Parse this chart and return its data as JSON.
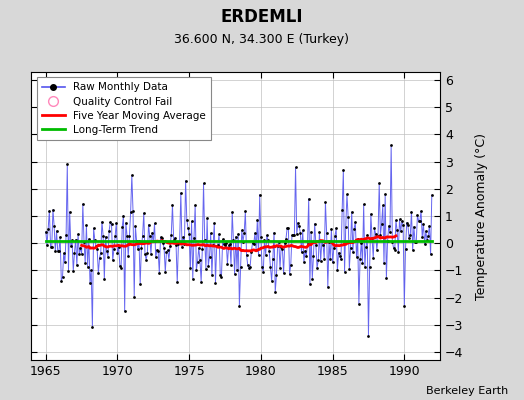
{
  "title": "ERDEMLI",
  "subtitle": "36.600 N, 34.300 E (Turkey)",
  "ylabel": "Temperature Anomaly (°C)",
  "credit": "Berkeley Earth",
  "xlim": [
    1964.0,
    1992.5
  ],
  "ylim": [
    -4.3,
    6.3
  ],
  "yticks": [
    -4,
    -3,
    -2,
    -1,
    0,
    1,
    2,
    3,
    4,
    5,
    6
  ],
  "xticks": [
    1965,
    1970,
    1975,
    1980,
    1985,
    1990
  ],
  "bg_color": "#d8d8d8",
  "plot_bg_color": "#ffffff",
  "grid_color": "#c0c0c0",
  "raw_line_color": "#5555ee",
  "raw_dot_color": "#000000",
  "moving_avg_color": "#ff0000",
  "trend_color": "#00bb00",
  "qc_fail_color": "#ff88bb",
  "seed": 42
}
